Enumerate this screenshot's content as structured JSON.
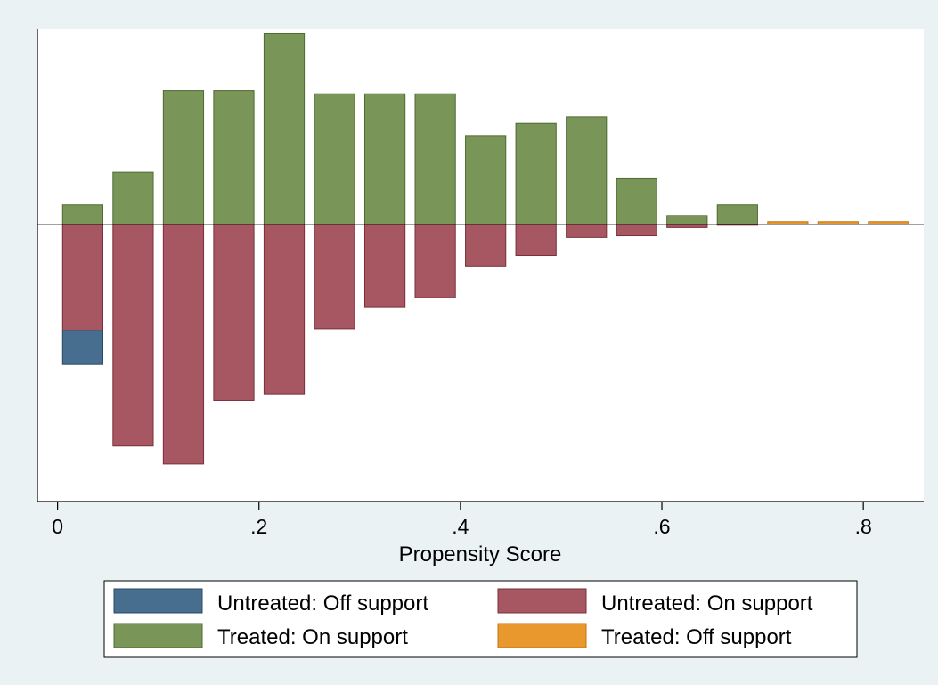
{
  "chart_data": {
    "type": "bar",
    "orientation": "mirrored",
    "xlabel": "Propensity Score",
    "ylabel": "",
    "xlim": [
      -0.02,
      0.86
    ],
    "xticks": [
      0,
      0.2,
      0.4,
      0.6,
      0.8
    ],
    "xtick_labels": [
      "0",
      ".2",
      ".4",
      ".6",
      ".8"
    ],
    "ylim": [
      -0.85,
      0.6
    ],
    "y_axis_ticks_shown": false,
    "grid": false,
    "bin_width": 0.04,
    "series": [
      {
        "name": "Untreated: Off support",
        "color": "#476e8f",
        "direction": "down",
        "bars": [
          {
            "x": 0.025,
            "base": -0.325,
            "value": -0.43
          }
        ]
      },
      {
        "name": "Untreated: On support",
        "color": "#a75761",
        "direction": "down",
        "bars": [
          {
            "x": 0.025,
            "base": 0,
            "value": -0.325
          },
          {
            "x": 0.075,
            "base": 0,
            "value": -0.68
          },
          {
            "x": 0.125,
            "base": 0,
            "value": -0.735
          },
          {
            "x": 0.175,
            "base": 0,
            "value": -0.54
          },
          {
            "x": 0.225,
            "base": 0,
            "value": -0.52
          },
          {
            "x": 0.275,
            "base": 0,
            "value": -0.32
          },
          {
            "x": 0.325,
            "base": 0,
            "value": -0.255
          },
          {
            "x": 0.375,
            "base": 0,
            "value": -0.225
          },
          {
            "x": 0.425,
            "base": 0,
            "value": -0.13
          },
          {
            "x": 0.475,
            "base": 0,
            "value": -0.095
          },
          {
            "x": 0.525,
            "base": 0,
            "value": -0.04
          },
          {
            "x": 0.575,
            "base": 0,
            "value": -0.035
          },
          {
            "x": 0.625,
            "base": 0,
            "value": -0.01
          },
          {
            "x": 0.675,
            "base": 0,
            "value": -0.003
          }
        ]
      },
      {
        "name": "Treated: On support",
        "color": "#7a9558",
        "direction": "up",
        "bars": [
          {
            "x": 0.025,
            "base": 0,
            "value": 0.06
          },
          {
            "x": 0.075,
            "base": 0,
            "value": 0.16
          },
          {
            "x": 0.125,
            "base": 0,
            "value": 0.41
          },
          {
            "x": 0.175,
            "base": 0,
            "value": 0.41
          },
          {
            "x": 0.225,
            "base": 0,
            "value": 0.585
          },
          {
            "x": 0.275,
            "base": 0,
            "value": 0.4
          },
          {
            "x": 0.325,
            "base": 0,
            "value": 0.4
          },
          {
            "x": 0.375,
            "base": 0,
            "value": 0.4
          },
          {
            "x": 0.425,
            "base": 0,
            "value": 0.27
          },
          {
            "x": 0.475,
            "base": 0,
            "value": 0.31
          },
          {
            "x": 0.525,
            "base": 0,
            "value": 0.33
          },
          {
            "x": 0.575,
            "base": 0,
            "value": 0.14
          },
          {
            "x": 0.625,
            "base": 0,
            "value": 0.027
          },
          {
            "x": 0.675,
            "base": 0,
            "value": 0.06
          }
        ]
      },
      {
        "name": "Treated: Off support",
        "color": "#e8982d",
        "direction": "up",
        "bars": [
          {
            "x": 0.725,
            "base": 0,
            "value": 0.008
          },
          {
            "x": 0.775,
            "base": 0,
            "value": 0.008
          },
          {
            "x": 0.825,
            "base": 0,
            "value": 0.008
          }
        ]
      }
    ],
    "legend": {
      "placement": "bottom",
      "columns": 2,
      "entries": [
        "Untreated: Off support",
        "Untreated: On support",
        "Treated: On support",
        "Treated: Off support"
      ]
    },
    "colors": {
      "background": "#eaf2f3",
      "plot_background": "#ffffff",
      "axis": "#000000",
      "untreated_off_support": "#476e8f",
      "untreated_on_support": "#a75761",
      "treated_on_support": "#7a9558",
      "treated_off_support": "#e8982d"
    }
  }
}
